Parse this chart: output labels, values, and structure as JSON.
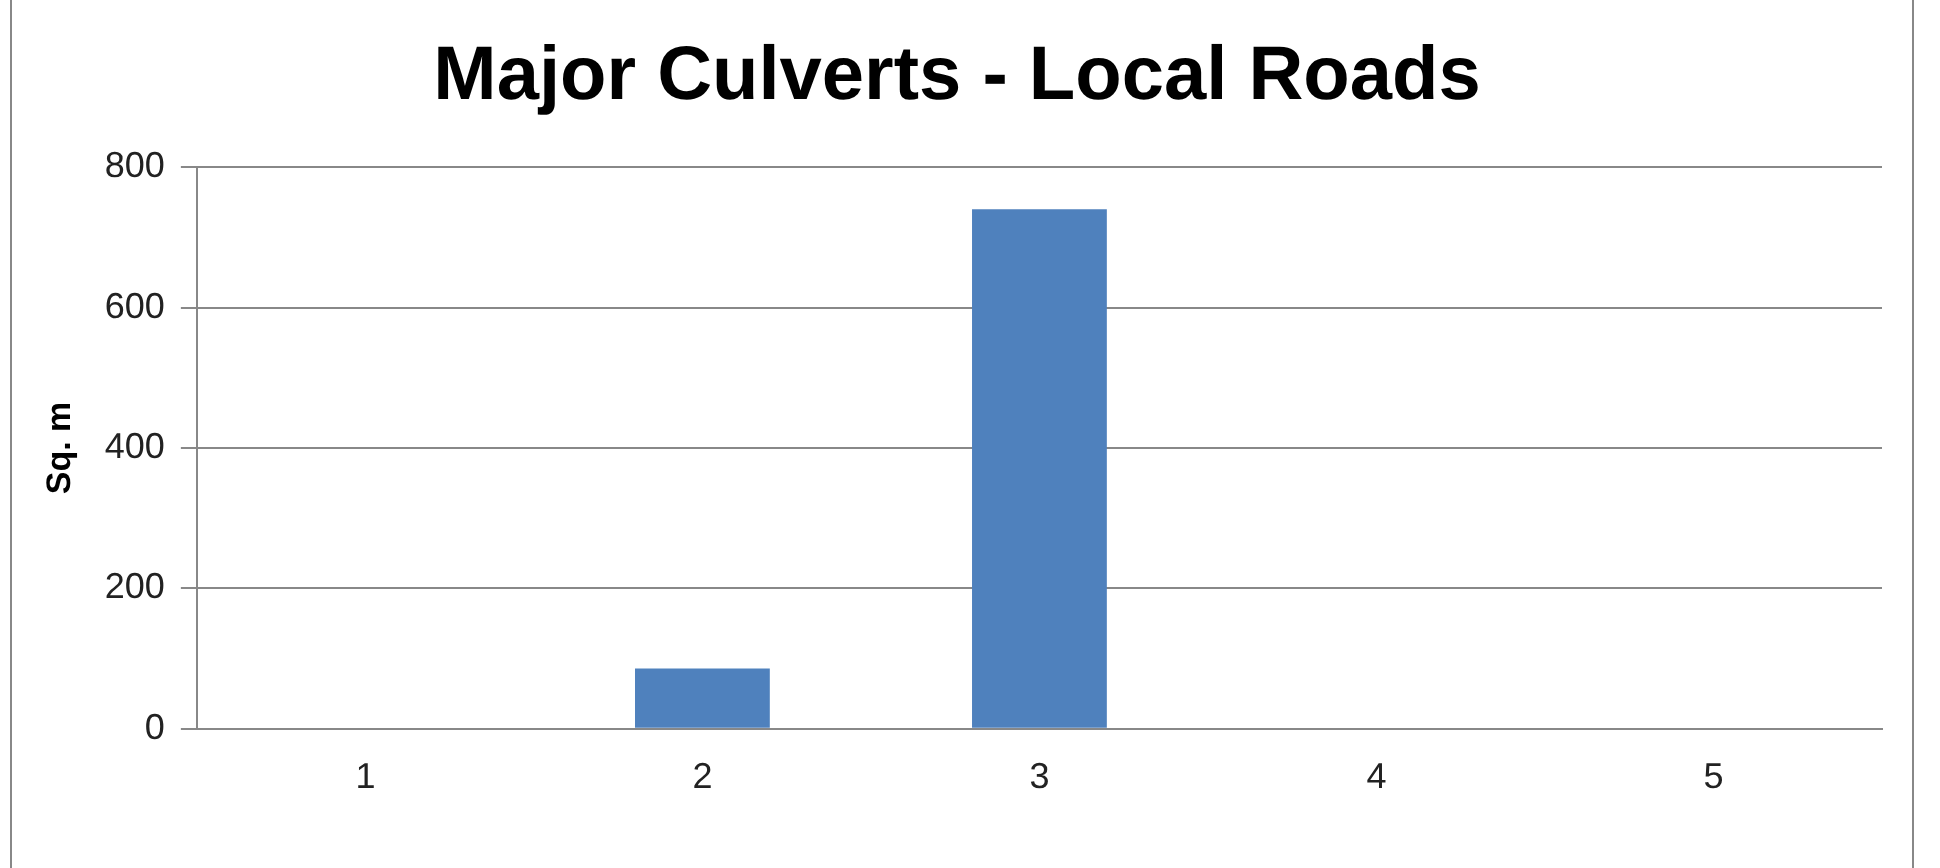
{
  "chart_data": {
    "type": "bar",
    "title": "Major Culverts - Local Roads",
    "ylabel": "Sq. m",
    "categories": [
      "1",
      "2",
      "3",
      "4",
      "5"
    ],
    "values": [
      0,
      86,
      740,
      0,
      0
    ],
    "color": "#4f81bd",
    "ylim": [
      0,
      800
    ],
    "yticks": [
      0,
      200,
      400,
      600,
      800
    ],
    "grid": "y"
  }
}
